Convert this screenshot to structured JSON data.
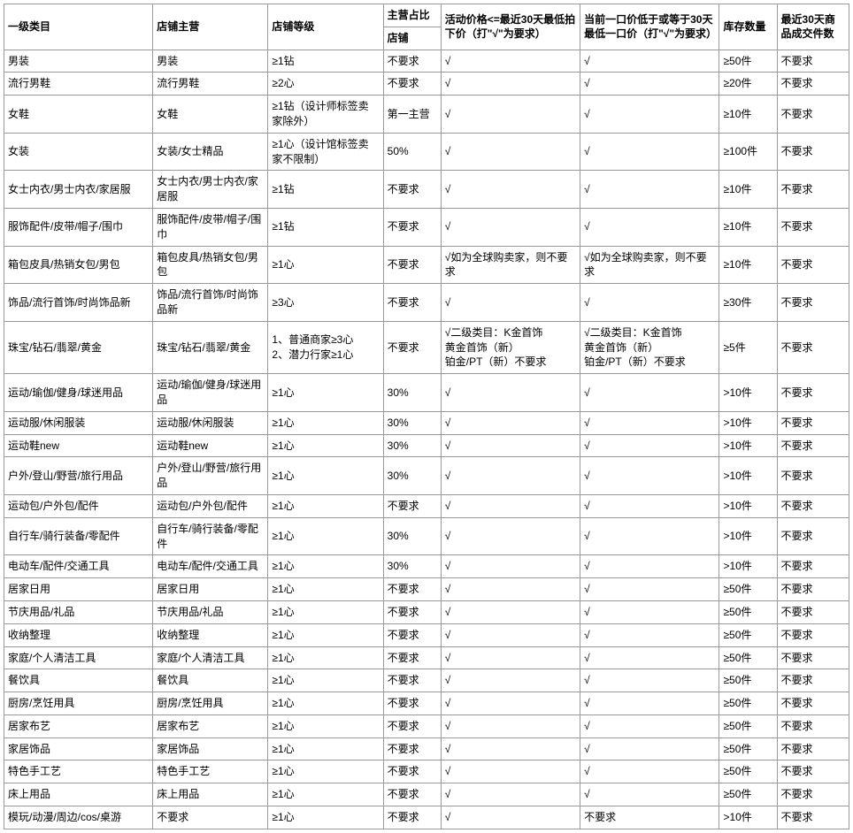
{
  "table": {
    "headers": {
      "col0": "一级类目",
      "col1": "店铺主营",
      "col2": "店铺等级",
      "col3_top": "主营占比",
      "col3_sub": "店铺",
      "col4": "活动价格<=最近30天最低拍下价（打\"√\"为要求）",
      "col5": "当前一口价低于或等于30天最低一口价（打\"√\"为要求）",
      "col6": "库存数量",
      "col7": "最近30天商品成交件数"
    },
    "rows": [
      [
        "男装",
        "男装",
        "≥1钻",
        "不要求",
        "√",
        "√",
        "≥50件",
        "不要求"
      ],
      [
        "流行男鞋",
        "流行男鞋",
        "≥2心",
        "不要求",
        "√",
        "√",
        "≥20件",
        "不要求"
      ],
      [
        "女鞋",
        "女鞋",
        "≥1钻（设计师标签卖家除外）",
        "第一主营",
        "√",
        "√",
        "≥10件",
        "不要求"
      ],
      [
        "女装",
        "女装/女士精品",
        "≥1心（设计馆标签卖家不限制）",
        "50%",
        "√",
        "√",
        "≥100件",
        "不要求"
      ],
      [
        "女士内衣/男士内衣/家居服",
        "女士内衣/男士内衣/家居服",
        "≥1钻",
        "不要求",
        "√",
        "√",
        "≥10件",
        "不要求"
      ],
      [
        "服饰配件/皮带/帽子/围巾",
        "服饰配件/皮带/帽子/围巾",
        "≥1钻",
        "不要求",
        "√",
        "√",
        "≥10件",
        "不要求"
      ],
      [
        "箱包皮具/热销女包/男包",
        "箱包皮具/热销女包/男包",
        "≥1心",
        "不要求",
        "√如为全球购卖家，则不要求",
        "√如为全球购卖家，则不要求",
        "≥10件",
        "不要求"
      ],
      [
        "饰品/流行首饰/时尚饰品新",
        "饰品/流行首饰/时尚饰品新",
        "≥3心",
        "不要求",
        "√",
        "√",
        "≥30件",
        "不要求"
      ],
      [
        "珠宝/钻石/翡翠/黄金",
        "珠宝/钻石/翡翠/黄金",
        "1、普通商家≥3心\n2、潜力行家≥1心",
        "不要求",
        "√二级类目：K金首饰\n黄金首饰（新）\n铂金/PT（新）不要求",
        "√二级类目：K金首饰\n黄金首饰（新）\n铂金/PT（新）不要求",
        "≥5件",
        "不要求"
      ],
      [
        "运动/瑜伽/健身/球迷用品",
        "运动/瑜伽/健身/球迷用品",
        "≥1心",
        "30%",
        "√",
        "√",
        ">10件",
        "不要求"
      ],
      [
        "运动服/休闲服装",
        "运动服/休闲服装",
        "≥1心",
        "30%",
        "√",
        "√",
        ">10件",
        "不要求"
      ],
      [
        "运动鞋new",
        "运动鞋new",
        "≥1心",
        "30%",
        "√",
        "√",
        ">10件",
        "不要求"
      ],
      [
        "户外/登山/野营/旅行用品",
        "户外/登山/野营/旅行用品",
        "≥1心",
        "30%",
        "√",
        "√",
        ">10件",
        "不要求"
      ],
      [
        "运动包/户外包/配件",
        "运动包/户外包/配件",
        "≥1心",
        "不要求",
        "√",
        "√",
        ">10件",
        "不要求"
      ],
      [
        "自行车/骑行装备/零配件",
        "自行车/骑行装备/零配件",
        "≥1心",
        "30%",
        "√",
        "√",
        ">10件",
        "不要求"
      ],
      [
        "电动车/配件/交通工具",
        "电动车/配件/交通工具",
        "≥1心",
        "30%",
        "√",
        "√",
        ">10件",
        "不要求"
      ],
      [
        "居家日用",
        "居家日用",
        "≥1心",
        "不要求",
        "√",
        "√",
        "≥50件",
        "不要求"
      ],
      [
        "节庆用品/礼品",
        "节庆用品/礼品",
        "≥1心",
        "不要求",
        "√",
        "√",
        "≥50件",
        "不要求"
      ],
      [
        "收纳整理",
        "收纳整理",
        "≥1心",
        "不要求",
        "√",
        "√",
        "≥50件",
        "不要求"
      ],
      [
        "家庭/个人清洁工具",
        "家庭/个人清洁工具",
        "≥1心",
        "不要求",
        "√",
        "√",
        "≥50件",
        "不要求"
      ],
      [
        "餐饮具",
        "餐饮具",
        "≥1心",
        "不要求",
        "√",
        "√",
        "≥50件",
        "不要求"
      ],
      [
        "厨房/烹饪用具",
        "厨房/烹饪用具",
        "≥1心",
        "不要求",
        "√",
        "√",
        "≥50件",
        "不要求"
      ],
      [
        "居家布艺",
        "居家布艺",
        "≥1心",
        "不要求",
        "√",
        "√",
        "≥50件",
        "不要求"
      ],
      [
        "家居饰品",
        "家居饰品",
        "≥1心",
        "不要求",
        "√",
        "√",
        "≥50件",
        "不要求"
      ],
      [
        "特色手工艺",
        "特色手工艺",
        "≥1心",
        "不要求",
        "√",
        "√",
        "≥50件",
        "不要求"
      ],
      [
        "床上用品",
        "床上用品",
        "≥1心",
        "不要求",
        "√",
        "√",
        "≥50件",
        "不要求"
      ],
      [
        "模玩/动漫/周边/cos/桌游",
        "不要求",
        "≥1心",
        "不要求",
        "√",
        "不要求",
        ">10件",
        "不要求"
      ]
    ]
  }
}
